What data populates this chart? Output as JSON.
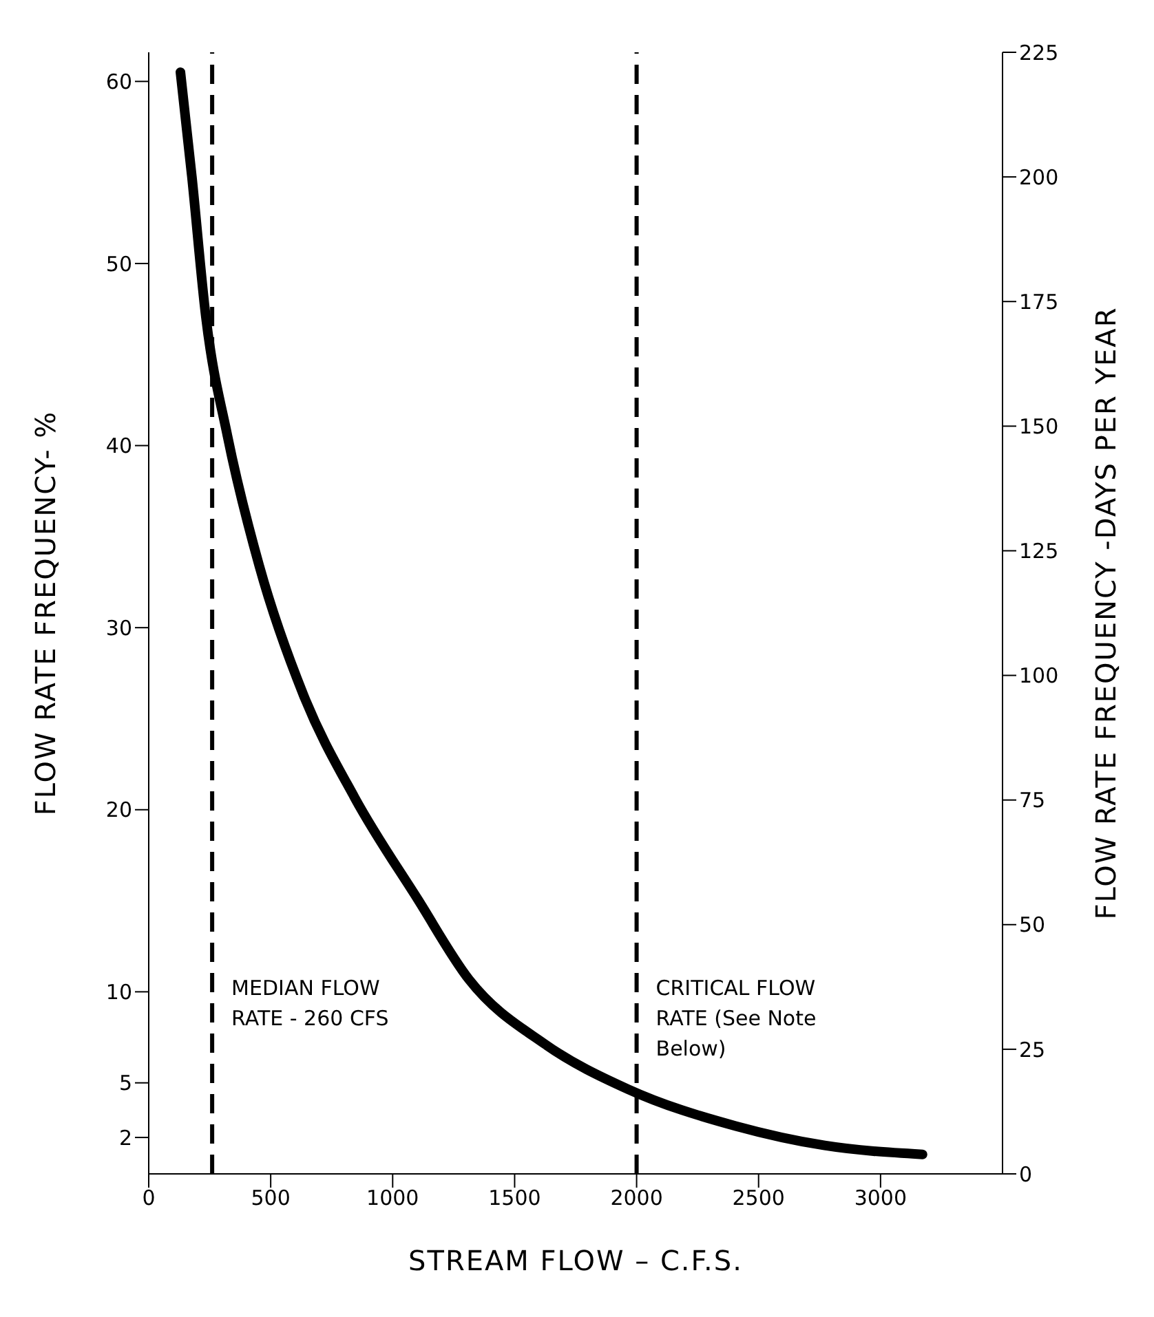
{
  "chart_data": {
    "type": "line",
    "xlabel": "STREAM FLOW – C.F.S.",
    "ylabel": "FLOW RATE FREQUENCY- %",
    "y2label": "FLOW RATE FREQUENCY -DAYS PER YEAR",
    "x": [
      130,
      177,
      234,
      323,
      453,
      635,
      844,
      1104,
      1313,
      1625,
      1964,
      2406,
      2771,
      3172
    ],
    "series": [
      {
        "color": "#000000",
        "axis": "y2",
        "values": [
          221,
          200,
          172,
          148,
          122,
          96,
          75.5,
          55,
          39,
          26,
          17,
          9.6,
          5.7,
          3.9
        ]
      }
    ],
    "xlim": [
      0,
      3500
    ],
    "xticks": [
      0,
      500,
      1000,
      1500,
      2000,
      2500,
      3000
    ],
    "ylim": [
      0,
      61.6
    ],
    "yticks": [
      2,
      5,
      10,
      20,
      30,
      40,
      50,
      60
    ],
    "y2lim": [
      0,
      225
    ],
    "y2ticks": [
      0,
      25,
      50,
      75,
      100,
      125,
      150,
      175,
      200,
      225
    ],
    "ref_lines": [
      {
        "axis": "x",
        "value": 260,
        "label": "MEDIAN FLOW RATE - 260 CFS",
        "line_style": "dashed"
      },
      {
        "axis": "x",
        "value": 2000,
        "label": "CRITICAL FLOW RATE (See Note Below)",
        "line_style": "dashed"
      }
    ],
    "grid": false,
    "legend": false,
    "marker": "none",
    "line_style": "solid"
  }
}
